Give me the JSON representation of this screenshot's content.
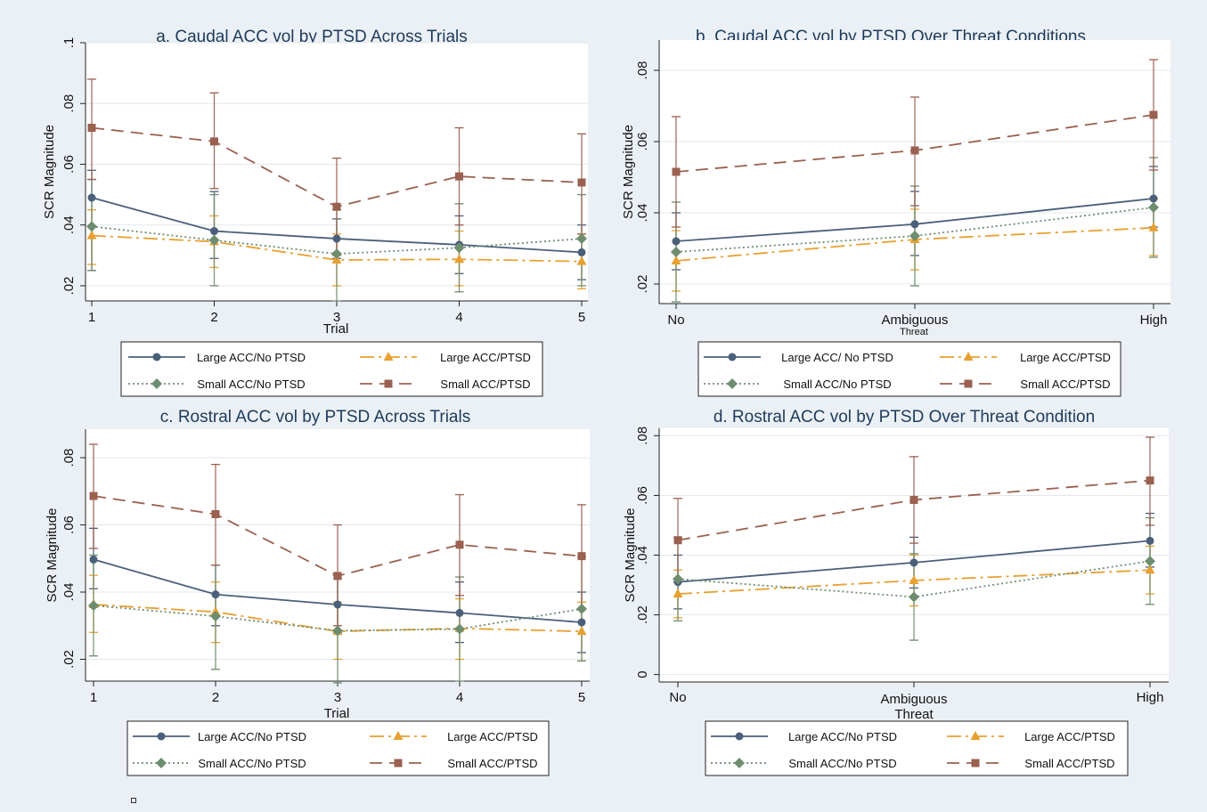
{
  "colors": {
    "large_no_ptsd": "#4a5f7a",
    "large_ptsd": "#e8a030",
    "small_no_ptsd": "#6e8c6e",
    "small_ptsd": "#9a6050",
    "background": "#eaf0f5",
    "plot_bg": "#ffffff",
    "title": "#1e3a5a"
  },
  "series_styles": [
    {
      "key": "large_no_ptsd",
      "marker": "circle",
      "dash": ""
    },
    {
      "key": "large_ptsd",
      "marker": "triangle",
      "dash": "16,5,3,5"
    },
    {
      "key": "small_no_ptsd",
      "marker": "diamond",
      "dash": "2,3"
    },
    {
      "key": "small_ptsd",
      "marker": "square",
      "dash": "14,8"
    }
  ],
  "chart_data": [
    {
      "type": "line",
      "title": "a. Caudal ACC vol by PTSD Across Trials",
      "xlabel": "Trial",
      "ylabel": "SCR Magnitude",
      "categories": [
        "1",
        "2",
        "3",
        "4",
        "5"
      ],
      "ylim": [
        0.015,
        0.1
      ],
      "yticks": [
        0.02,
        0.04,
        0.06,
        0.08,
        0.1
      ],
      "ytick_labels": [
        ".02",
        ".04",
        ".06",
        ".08",
        ".1"
      ],
      "grid": true,
      "legend_labels": [
        "Large ACC/No PTSD",
        "Large ACC/PTSD",
        "Small ACC/No PTSD",
        "Small ACC/PTSD"
      ],
      "series": [
        {
          "values": [
            0.049,
            0.038,
            0.0355,
            0.0335,
            0.031
          ],
          "ci": [
            [
              0.025,
              0.058
            ],
            [
              0.029,
              0.051
            ],
            [
              0.029,
              0.042
            ],
            [
              0.024,
              0.043
            ],
            [
              0.022,
              0.04
            ]
          ]
        },
        {
          "values": [
            0.0365,
            0.0345,
            0.0285,
            0.0287,
            0.028
          ],
          "ci": [
            [
              0.027,
              0.045
            ],
            [
              0.026,
              0.043
            ],
            [
              0.02,
              0.037
            ],
            [
              0.02,
              0.038
            ],
            [
              0.019,
              0.037
            ]
          ]
        },
        {
          "values": [
            0.0395,
            0.035,
            0.0305,
            0.0325,
            0.0355
          ],
          "ci": [
            [
              0.025,
              0.055
            ],
            [
              0.02,
              0.05
            ],
            [
              0.015,
              0.045
            ],
            [
              0.018,
              0.047
            ],
            [
              0.02,
              0.05
            ]
          ]
        },
        {
          "values": [
            0.072,
            0.0675,
            0.046,
            0.056,
            0.054
          ],
          "ci": [
            [
              0.055,
              0.088
            ],
            [
              0.052,
              0.0835
            ],
            [
              0.03,
              0.062
            ],
            [
              0.04,
              0.072
            ],
            [
              0.037,
              0.07
            ]
          ]
        }
      ]
    },
    {
      "type": "line",
      "title": "b. Caudal ACC vol by PTSD Over Threat Conditions",
      "xlabel": "Threat",
      "ylabel": "SCR Magnitude",
      "categories": [
        "No",
        "Ambiguous",
        "High"
      ],
      "ylim": [
        0.0145,
        0.0885
      ],
      "yticks": [
        0.02,
        0.04,
        0.06,
        0.08
      ],
      "ytick_labels": [
        ".02",
        ".04",
        ".06",
        ".08"
      ],
      "grid": true,
      "legend_labels": [
        "Large ACC/ No PTSD",
        "Large ACC/PTSD",
        "Small ACC/No PTSD",
        "Small ACC/PTSD"
      ],
      "series": [
        {
          "values": [
            0.032,
            0.0368,
            0.044
          ],
          "ci": [
            [
              0.024,
              0.04
            ],
            [
              0.028,
              0.046
            ],
            [
              0.036,
              0.053
            ]
          ]
        },
        {
          "values": [
            0.0265,
            0.0325,
            0.0358
          ],
          "ci": [
            [
              0.018,
              0.035
            ],
            [
              0.024,
              0.041
            ],
            [
              0.028,
              0.044
            ]
          ]
        },
        {
          "values": [
            0.029,
            0.0335,
            0.0415
          ],
          "ci": [
            [
              0.015,
              0.043
            ],
            [
              0.0195,
              0.0475
            ],
            [
              0.0275,
              0.0555
            ]
          ]
        },
        {
          "values": [
            0.0515,
            0.0575,
            0.0675
          ],
          "ci": [
            [
              0.036,
              0.067
            ],
            [
              0.042,
              0.0725
            ],
            [
              0.052,
              0.083
            ]
          ]
        }
      ]
    },
    {
      "type": "line",
      "title": "c. Rostral ACC vol by PTSD Across Trials",
      "xlabel": "Trial",
      "ylabel": "SCR Magnitude",
      "categories": [
        "1",
        "2",
        "3",
        "4",
        "5"
      ],
      "ylim": [
        0.0135,
        0.0885
      ],
      "yticks": [
        0.02,
        0.04,
        0.06,
        0.08
      ],
      "ytick_labels": [
        ".02",
        ".04",
        ".06",
        ".08"
      ],
      "grid": true,
      "legend_labels": [
        "Large ACC/No PTSD",
        "Large ACC/PTSD",
        "Small ACC/No PTSD",
        "Small ACC/PTSD"
      ],
      "series": [
        {
          "values": [
            0.0497,
            0.0393,
            0.0363,
            0.0338,
            0.031
          ],
          "ci": [
            [
              0.041,
              0.059
            ],
            [
              0.03,
              0.048
            ],
            [
              0.028,
              0.045
            ],
            [
              0.025,
              0.043
            ],
            [
              0.022,
              0.04
            ]
          ]
        },
        {
          "values": [
            0.0363,
            0.0341,
            0.0283,
            0.0292,
            0.0283
          ],
          "ci": [
            [
              0.028,
              0.045
            ],
            [
              0.025,
              0.043
            ],
            [
              0.02,
              0.037
            ],
            [
              0.02,
              0.038
            ],
            [
              0.0195,
              0.037
            ]
          ]
        },
        {
          "values": [
            0.036,
            0.0328,
            0.0285,
            0.029,
            0.035
          ],
          "ci": [
            [
              0.021,
              0.051
            ],
            [
              0.017,
              0.048
            ],
            [
              0.013,
              0.044
            ],
            [
              0.0135,
              0.0445
            ],
            [
              0.0195,
              0.0505
            ]
          ]
        },
        {
          "values": [
            0.0686,
            0.0632,
            0.0448,
            0.0541,
            0.0507
          ],
          "ci": [
            [
              0.053,
              0.084
            ],
            [
              0.048,
              0.078
            ],
            [
              0.03,
              0.06
            ],
            [
              0.039,
              0.069
            ],
            [
              0.035,
              0.066
            ]
          ]
        }
      ]
    },
    {
      "type": "line",
      "title": "d. Rostral ACC vol by PTSD Over Threat Condition",
      "xlabel": "Ambiguous\nThreat",
      "ylabel": "SCR Magnitude",
      "categories": [
        "No",
        "",
        "High"
      ],
      "ylim": [
        -0.0025,
        0.0825
      ],
      "yticks": [
        0,
        0.02,
        0.04,
        0.06,
        0.08
      ],
      "ytick_labels": [
        "0",
        ".02",
        ".04",
        ".06",
        ".08"
      ],
      "grid": true,
      "legend_labels": [
        "Large ACC/No PTSD",
        "Large ACC/PTSD",
        "Small ACC/No PTSD",
        "Small ACC/PTSD"
      ],
      "series": [
        {
          "values": [
            0.031,
            0.0375,
            0.0448
          ],
          "ci": [
            [
              0.022,
              0.04
            ],
            [
              0.029,
              0.046
            ],
            [
              0.036,
              0.054
            ]
          ]
        },
        {
          "values": [
            0.027,
            0.0315,
            0.035
          ],
          "ci": [
            [
              0.019,
              0.035
            ],
            [
              0.023,
              0.04
            ],
            [
              0.027,
              0.043
            ]
          ]
        },
        {
          "values": [
            0.032,
            0.026,
            0.038
          ],
          "ci": [
            [
              0.018,
              0.046
            ],
            [
              0.0115,
              0.0405
            ],
            [
              0.0235,
              0.0525
            ]
          ]
        },
        {
          "values": [
            0.045,
            0.0585,
            0.065
          ],
          "ci": [
            [
              0.031,
              0.059
            ],
            [
              0.044,
              0.073
            ],
            [
              0.05,
              0.0795
            ]
          ]
        }
      ]
    }
  ]
}
